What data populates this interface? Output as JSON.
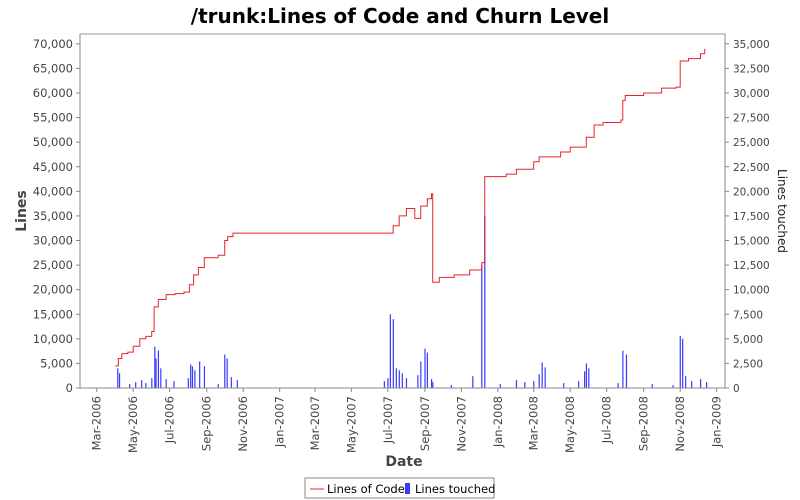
{
  "chart_data": {
    "type": "line",
    "title": "/trunk:Lines of Code and Churn Level",
    "xlabel": "Date",
    "ylabel": "Lines",
    "ylabel_right": "Lines touched",
    "x_ticks": [
      "Mar-2006",
      "May-2006",
      "Jul-2006",
      "Sep-2006",
      "Nov-2006",
      "Jan-2007",
      "Mar-2007",
      "May-2007",
      "Jul-2007",
      "Sep-2007",
      "Nov-2007",
      "Jan-2008",
      "Mar-2008",
      "May-2008",
      "Jul-2008",
      "Sep-2008",
      "Nov-2008",
      "Jan-2009"
    ],
    "y_ticks": [
      "0",
      "5,000",
      "10,000",
      "15,000",
      "20,000",
      "25,000",
      "30,000",
      "35,000",
      "40,000",
      "45,000",
      "50,000",
      "55,000",
      "60,000",
      "65,000",
      "70,000"
    ],
    "y_right_ticks": [
      "0",
      "2,500",
      "5,000",
      "7,500",
      "10,000",
      "12,500",
      "15,000",
      "17,500",
      "20,000",
      "22,500",
      "25,000",
      "27,500",
      "30,000",
      "32,500",
      "35,000"
    ],
    "ylim": [
      0,
      72000
    ],
    "ylim_right": [
      0,
      36000
    ],
    "xlim": [
      "2006-02-01",
      "2009-01-15"
    ],
    "legend_position": "bottom",
    "colors": {
      "loc": "#e8242a",
      "churn": "#3a3aff"
    },
    "series": [
      {
        "name": "Lines of Code",
        "axis": "left",
        "style": "step",
        "points": [
          [
            "2006-04-01",
            4500
          ],
          [
            "2006-04-06",
            6000
          ],
          [
            "2006-04-12",
            7000
          ],
          [
            "2006-04-22",
            7300
          ],
          [
            "2006-05-01",
            8500
          ],
          [
            "2006-05-12",
            10000
          ],
          [
            "2006-05-22",
            10500
          ],
          [
            "2006-06-01",
            11500
          ],
          [
            "2006-06-05",
            16500
          ],
          [
            "2006-06-12",
            18000
          ],
          [
            "2006-06-25",
            19000
          ],
          [
            "2006-07-10",
            19200
          ],
          [
            "2006-07-25",
            19500
          ],
          [
            "2006-08-03",
            21000
          ],
          [
            "2006-08-10",
            23000
          ],
          [
            "2006-08-18",
            24500
          ],
          [
            "2006-08-28",
            26500
          ],
          [
            "2006-09-20",
            27000
          ],
          [
            "2006-10-01",
            30000
          ],
          [
            "2006-10-06",
            30800
          ],
          [
            "2006-10-15",
            31500
          ],
          [
            "2006-11-15",
            31500
          ],
          [
            "2007-04-01",
            31500
          ],
          [
            "2007-06-25",
            31500
          ],
          [
            "2007-07-10",
            33000
          ],
          [
            "2007-07-20",
            35000
          ],
          [
            "2007-08-01",
            36500
          ],
          [
            "2007-08-15",
            34500
          ],
          [
            "2007-08-25",
            37000
          ],
          [
            "2007-09-05",
            38500
          ],
          [
            "2007-09-12",
            39500
          ],
          [
            "2007-09-14",
            21500
          ],
          [
            "2007-09-25",
            22500
          ],
          [
            "2007-10-20",
            23000
          ],
          [
            "2007-11-15",
            24000
          ],
          [
            "2007-12-05",
            25500
          ],
          [
            "2007-12-10",
            43000
          ],
          [
            "2008-01-15",
            43500
          ],
          [
            "2008-02-01",
            44500
          ],
          [
            "2008-03-01",
            46000
          ],
          [
            "2008-03-10",
            47000
          ],
          [
            "2008-04-15",
            48000
          ],
          [
            "2008-05-01",
            49000
          ],
          [
            "2008-05-28",
            51000
          ],
          [
            "2008-06-10",
            53500
          ],
          [
            "2008-06-25",
            54000
          ],
          [
            "2008-07-25",
            54500
          ],
          [
            "2008-07-28",
            58500
          ],
          [
            "2008-08-01",
            59500
          ],
          [
            "2008-09-01",
            60000
          ],
          [
            "2008-10-01",
            61000
          ],
          [
            "2008-10-25",
            61200
          ],
          [
            "2008-11-01",
            66500
          ],
          [
            "2008-11-15",
            67000
          ],
          [
            "2008-12-05",
            68000
          ],
          [
            "2008-12-12",
            69000
          ]
        ]
      },
      {
        "name": "Lines touched",
        "axis": "right",
        "style": "bar",
        "points": [
          [
            "2006-04-05",
            2000
          ],
          [
            "2006-04-08",
            1500
          ],
          [
            "2006-04-25",
            400
          ],
          [
            "2006-05-05",
            600
          ],
          [
            "2006-05-15",
            800
          ],
          [
            "2006-05-22",
            500
          ],
          [
            "2006-06-01",
            1000
          ],
          [
            "2006-06-06",
            4200
          ],
          [
            "2006-06-08",
            3000
          ],
          [
            "2006-06-12",
            3800
          ],
          [
            "2006-06-16",
            2000
          ],
          [
            "2006-06-25",
            900
          ],
          [
            "2006-07-08",
            700
          ],
          [
            "2006-08-01",
            1000
          ],
          [
            "2006-08-05",
            2400
          ],
          [
            "2006-08-08",
            2200
          ],
          [
            "2006-08-12",
            1800
          ],
          [
            "2006-08-20",
            2700
          ],
          [
            "2006-08-28",
            2200
          ],
          [
            "2006-09-20",
            400
          ],
          [
            "2006-10-01",
            3400
          ],
          [
            "2006-10-05",
            3000
          ],
          [
            "2006-10-12",
            1100
          ],
          [
            "2006-10-22",
            800
          ],
          [
            "2007-06-25",
            700
          ],
          [
            "2007-07-01",
            1000
          ],
          [
            "2007-07-05",
            7500
          ],
          [
            "2007-07-10",
            7000
          ],
          [
            "2007-07-15",
            2000
          ],
          [
            "2007-07-20",
            1800
          ],
          [
            "2007-07-25",
            1500
          ],
          [
            "2007-08-01",
            1000
          ],
          [
            "2007-08-20",
            1300
          ],
          [
            "2007-08-25",
            2700
          ],
          [
            "2007-09-01",
            4000
          ],
          [
            "2007-09-05",
            3600
          ],
          [
            "2007-09-12",
            900
          ],
          [
            "2007-09-14",
            600
          ],
          [
            "2007-10-15",
            300
          ],
          [
            "2007-11-20",
            1200
          ],
          [
            "2007-12-05",
            12500
          ],
          [
            "2007-12-10",
            17500
          ],
          [
            "2008-01-05",
            400
          ],
          [
            "2008-02-01",
            800
          ],
          [
            "2008-02-15",
            600
          ],
          [
            "2008-03-01",
            700
          ],
          [
            "2008-03-10",
            1400
          ],
          [
            "2008-03-15",
            2600
          ],
          [
            "2008-03-20",
            2100
          ],
          [
            "2008-04-20",
            500
          ],
          [
            "2008-05-15",
            700
          ],
          [
            "2008-05-25",
            1700
          ],
          [
            "2008-05-28",
            2500
          ],
          [
            "2008-06-01",
            2000
          ],
          [
            "2008-07-20",
            500
          ],
          [
            "2008-07-28",
            3800
          ],
          [
            "2008-08-03",
            3400
          ],
          [
            "2008-09-15",
            400
          ],
          [
            "2008-10-20",
            300
          ],
          [
            "2008-11-01",
            5300
          ],
          [
            "2008-11-05",
            5000
          ],
          [
            "2008-11-10",
            1200
          ],
          [
            "2008-11-20",
            700
          ],
          [
            "2008-12-05",
            900
          ],
          [
            "2008-12-15",
            600
          ]
        ]
      }
    ]
  }
}
